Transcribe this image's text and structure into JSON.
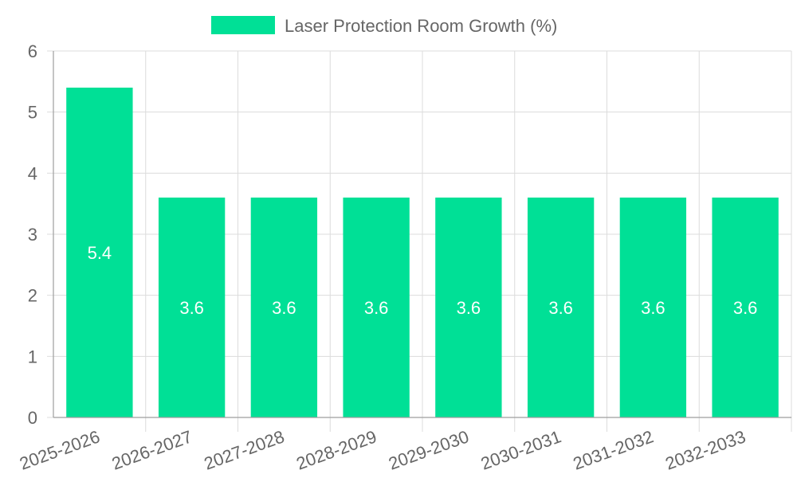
{
  "chart_data": {
    "type": "bar",
    "categories": [
      "2025-2026",
      "2026-2027",
      "2027-2028",
      "2028-2029",
      "2029-2030",
      "2030-2031",
      "2031-2032",
      "2032-2033"
    ],
    "series": [
      {
        "name": "Laser Protection Room Growth (%)",
        "values": [
          5.4,
          3.6,
          3.6,
          3.6,
          3.6,
          3.6,
          3.6,
          3.6
        ],
        "color": "#00e096"
      }
    ],
    "ylim": [
      0,
      6
    ],
    "yticks": [
      "0",
      "1",
      "2",
      "3",
      "4",
      "5",
      "6"
    ],
    "grid": true,
    "legend_position": "top-center",
    "data_labels": [
      "5.4",
      "3.6",
      "3.6",
      "3.6",
      "3.6",
      "3.6",
      "3.6",
      "3.6"
    ]
  }
}
